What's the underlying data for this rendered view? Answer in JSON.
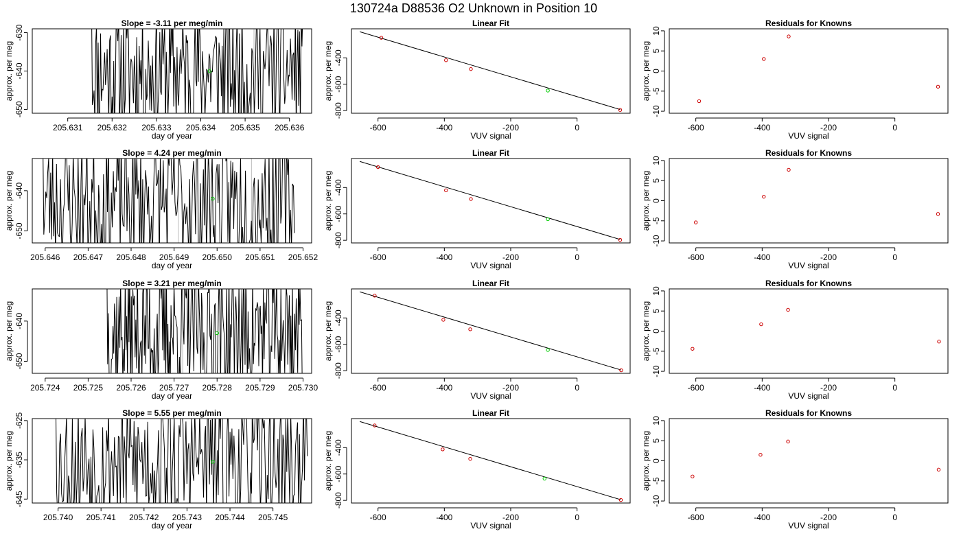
{
  "title": "130724a      D88536   O2 Unknown in Position  10",
  "colors": {
    "trace": "#000000",
    "known_points": "#cc0000",
    "unknown_point": "#00cc00",
    "fit_line": "#000000",
    "vertical_marker": "#bbbbbb"
  },
  "chart_data": [
    {
      "type": "line",
      "title": "Slope =  -3.11  per meg/min",
      "xlabel": "day of year",
      "ylabel": "approx. per meg",
      "xlim": [
        205.6302,
        205.6365
      ],
      "ylim": [
        -651,
        -629
      ],
      "xticks": [
        205.631,
        205.632,
        205.633,
        205.634,
        205.635,
        205.636
      ],
      "xtick_labels": [
        "205.631",
        "205.632",
        "205.633",
        "205.634",
        "205.635",
        "205.636"
      ],
      "yticks": [
        -630,
        -640,
        -650
      ],
      "ytick_labels": [
        "-630",
        "-640",
        "-650"
      ],
      "trace_x_range": [
        205.6315,
        205.6363
      ],
      "trace_seed": 11,
      "vertical_markers": [
        205.6352
      ],
      "unknown_point": {
        "x": 205.6342,
        "y": -640
      }
    },
    {
      "type": "scatter",
      "title": "Linear Fit",
      "xlabel": "VUV signal",
      "ylabel": "approx. per meg",
      "xlim": [
        -680,
        160
      ],
      "ylim": [
        -820,
        -180
      ],
      "xticks": [
        -600,
        -400,
        -200,
        0
      ],
      "xtick_labels": [
        "-600",
        "-400",
        "-200",
        "0"
      ],
      "yticks": [
        -400,
        -600,
        -800
      ],
      "ytick_labels": [
        "-400",
        "-600",
        "-800"
      ],
      "known_points": [
        {
          "x": -590,
          "y": -248
        },
        {
          "x": -395,
          "y": -418
        },
        {
          "x": -320,
          "y": -485
        },
        {
          "x": 130,
          "y": -795
        }
      ],
      "unknown_points": [
        {
          "x": -88,
          "y": -648
        }
      ],
      "fit_line": {
        "x0": -655,
        "y0": -202,
        "x1": 130,
        "y1": -792
      }
    },
    {
      "type": "scatter",
      "title": "Residuals for Knowns",
      "xlabel": "VUV signal",
      "ylabel": "approx. per meg",
      "xlim": [
        -680,
        160
      ],
      "ylim": [
        -10.5,
        10.5
      ],
      "xticks": [
        -600,
        -400,
        -200,
        0
      ],
      "xtick_labels": [
        "-600",
        "-400",
        "-200",
        "0"
      ],
      "yticks": [
        10,
        5,
        0,
        -5,
        -10
      ],
      "ytick_labels": [
        "10",
        "5",
        "0",
        "-5",
        "-10"
      ],
      "known_points": [
        {
          "x": -590,
          "y": -7.5
        },
        {
          "x": -395,
          "y": 3
        },
        {
          "x": -320,
          "y": 8.6
        },
        {
          "x": 130,
          "y": -3.9
        }
      ]
    },
    {
      "type": "line",
      "title": "Slope =  4.24  per meg/min",
      "xlabel": "day of year",
      "ylabel": "approx. per meg",
      "xlim": [
        205.6457,
        205.6522
      ],
      "ylim": [
        -653,
        -632
      ],
      "xticks": [
        205.646,
        205.647,
        205.648,
        205.649,
        205.65,
        205.651,
        205.652
      ],
      "xtick_labels": [
        "205.646",
        "205.647",
        "205.648",
        "205.649",
        "205.650",
        "205.651",
        "205.652"
      ],
      "yticks": [
        -640,
        -650
      ],
      "ytick_labels": [
        "-640",
        "-650"
      ],
      "trace_x_range": [
        205.6459,
        205.6518
      ],
      "trace_seed": 23,
      "vertical_markers": [
        205.6491,
        205.6508
      ],
      "unknown_point": {
        "x": 205.6499,
        "y": -642
      }
    },
    {
      "type": "scatter",
      "title": "Linear Fit",
      "xlabel": "VUV signal",
      "ylabel": "approx. per meg",
      "xlim": [
        -680,
        160
      ],
      "ylim": [
        -820,
        -180
      ],
      "xticks": [
        -600,
        -400,
        -200,
        0
      ],
      "xtick_labels": [
        "-600",
        "-400",
        "-200",
        "0"
      ],
      "yticks": [
        -400,
        -600,
        -800
      ],
      "ytick_labels": [
        "-400",
        "-600",
        "-800"
      ],
      "known_points": [
        {
          "x": -600,
          "y": -245
        },
        {
          "x": -395,
          "y": -421
        },
        {
          "x": -320,
          "y": -487
        },
        {
          "x": 130,
          "y": -797
        }
      ],
      "unknown_points": [
        {
          "x": -88,
          "y": -640
        }
      ],
      "fit_line": {
        "x0": -655,
        "y0": -202,
        "x1": 130,
        "y1": -794
      }
    },
    {
      "type": "scatter",
      "title": "Residuals for Knowns",
      "xlabel": "VUV signal",
      "ylabel": "approx. per meg",
      "xlim": [
        -680,
        160
      ],
      "ylim": [
        -10.5,
        10.5
      ],
      "xticks": [
        -600,
        -400,
        -200,
        0
      ],
      "xtick_labels": [
        "-600",
        "-400",
        "-200",
        "0"
      ],
      "yticks": [
        10,
        5,
        0,
        -5,
        -10
      ],
      "ytick_labels": [
        "10",
        "5",
        "0",
        "-5",
        "-10"
      ],
      "known_points": [
        {
          "x": -600,
          "y": -5.4
        },
        {
          "x": -395,
          "y": 1
        },
        {
          "x": -320,
          "y": 7.7
        },
        {
          "x": 130,
          "y": -3.3
        }
      ]
    },
    {
      "type": "line",
      "title": "Slope =  3.21  per meg/min",
      "xlabel": "day of year",
      "ylabel": "approx. per meg",
      "xlim": [
        205.7237,
        205.7302
      ],
      "ylim": [
        -653,
        -632
      ],
      "xticks": [
        205.724,
        205.725,
        205.726,
        205.727,
        205.728,
        205.729,
        205.73
      ],
      "xtick_labels": [
        "205.724",
        "205.725",
        "205.726",
        "205.727",
        "205.728",
        "205.729",
        "205.730"
      ],
      "yticks": [
        -640,
        -650
      ],
      "ytick_labels": [
        "-640",
        "-650"
      ],
      "trace_x_range": [
        205.7254,
        205.73
      ],
      "trace_seed": 37,
      "vertical_markers": [
        205.7272,
        205.7294
      ],
      "unknown_point": {
        "x": 205.728,
        "y": -643
      }
    },
    {
      "type": "scatter",
      "title": "Linear Fit",
      "xlabel": "VUV signal",
      "ylabel": "approx. per meg",
      "xlim": [
        -680,
        160
      ],
      "ylim": [
        -820,
        -180
      ],
      "xticks": [
        -600,
        -400,
        -200,
        0
      ],
      "xtick_labels": [
        "-600",
        "-400",
        "-200",
        "0"
      ],
      "yticks": [
        -400,
        -600,
        -800
      ],
      "ytick_labels": [
        "-400",
        "-600",
        "-800"
      ],
      "known_points": [
        {
          "x": -610,
          "y": -231
        },
        {
          "x": -403,
          "y": -414
        },
        {
          "x": -322,
          "y": -486
        },
        {
          "x": 133,
          "y": -797
        }
      ],
      "unknown_points": [
        {
          "x": -88,
          "y": -643
        }
      ],
      "fit_line": {
        "x0": -655,
        "y0": -202,
        "x1": 133,
        "y1": -795
      }
    },
    {
      "type": "scatter",
      "title": "Residuals for Knowns",
      "xlabel": "VUV signal",
      "ylabel": "approx. per meg",
      "xlim": [
        -680,
        160
      ],
      "ylim": [
        -10.5,
        10.5
      ],
      "xticks": [
        -600,
        -400,
        -200,
        0
      ],
      "xtick_labels": [
        "-600",
        "-400",
        "-200",
        "0"
      ],
      "yticks": [
        10,
        5,
        0,
        -5,
        -10
      ],
      "ytick_labels": [
        "10",
        "5",
        "0",
        "-5",
        "-10"
      ],
      "known_points": [
        {
          "x": -610,
          "y": -4.4
        },
        {
          "x": -403,
          "y": 1.7
        },
        {
          "x": -322,
          "y": 5.3
        },
        {
          "x": 133,
          "y": -2.6
        }
      ]
    },
    {
      "type": "line",
      "title": "Slope =  5.55  per meg/min",
      "xlabel": "day of year",
      "ylabel": "approx. per meg",
      "xlim": [
        205.7394,
        205.7459
      ],
      "ylim": [
        -646,
        -624.5
      ],
      "xticks": [
        205.74,
        205.741,
        205.742,
        205.743,
        205.744,
        205.745
      ],
      "xtick_labels": [
        "205.740",
        "205.741",
        "205.742",
        "205.743",
        "205.744",
        "205.745"
      ],
      "yticks": [
        -625,
        -635,
        -645
      ],
      "ytick_labels": [
        "-625",
        "-635",
        "-645"
      ],
      "trace_x_range": [
        205.7399,
        205.7458
      ],
      "trace_seed": 53,
      "vertical_markers": [
        205.7427,
        205.7445
      ],
      "unknown_point": {
        "x": 205.7436,
        "y": -635.5
      }
    },
    {
      "type": "scatter",
      "title": "Linear Fit",
      "xlabel": "VUV signal",
      "ylabel": "approx. per meg",
      "xlim": [
        -680,
        160
      ],
      "ylim": [
        -820,
        -180
      ],
      "xticks": [
        -600,
        -400,
        -200,
        0
      ],
      "xtick_labels": [
        "-600",
        "-400",
        "-200",
        "0"
      ],
      "yticks": [
        -400,
        -600,
        -800
      ],
      "ytick_labels": [
        "-400",
        "-600",
        "-800"
      ],
      "known_points": [
        {
          "x": -610,
          "y": -232
        },
        {
          "x": -405,
          "y": -413
        },
        {
          "x": -322,
          "y": -485
        },
        {
          "x": 132,
          "y": -797
        }
      ],
      "unknown_points": [
        {
          "x": -98,
          "y": -635
        }
      ],
      "fit_line": {
        "x0": -655,
        "y0": -202,
        "x1": 132,
        "y1": -795
      }
    },
    {
      "type": "scatter",
      "title": "Residuals for Knowns",
      "xlabel": "VUV signal",
      "ylabel": "approx. per meg",
      "xlim": [
        -680,
        160
      ],
      "ylim": [
        -10.5,
        10.5
      ],
      "xticks": [
        -600,
        -400,
        -200,
        0
      ],
      "xtick_labels": [
        "-600",
        "-400",
        "-200",
        "0"
      ],
      "yticks": [
        10,
        5,
        0,
        -5,
        -10
      ],
      "ytick_labels": [
        "10",
        "5",
        "0",
        "-5",
        "-10"
      ],
      "known_points": [
        {
          "x": -610,
          "y": -3.9
        },
        {
          "x": -405,
          "y": 1.5
        },
        {
          "x": -322,
          "y": 4.8
        },
        {
          "x": 132,
          "y": -2.2
        }
      ]
    }
  ]
}
